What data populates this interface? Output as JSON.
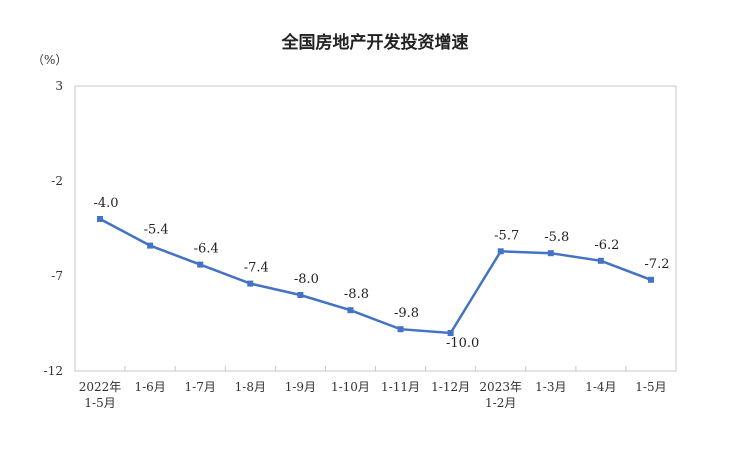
{
  "chart_data": {
    "type": "line",
    "title": "全国房地产开发投资增速",
    "ylabel": "（%）",
    "xlabel": "",
    "ylim": [
      -12,
      3
    ],
    "yticks": [
      3,
      -2,
      -7,
      -12
    ],
    "grid": false,
    "categories": [
      [
        "2022年",
        "1-5月"
      ],
      [
        "1-6月"
      ],
      [
        "1-7月"
      ],
      [
        "1-8月"
      ],
      [
        "1-9月"
      ],
      [
        "1-10月"
      ],
      [
        "1-11月"
      ],
      [
        "1-12月"
      ],
      [
        "2023年",
        "1-2月"
      ],
      [
        "1-3月"
      ],
      [
        "1-4月"
      ],
      [
        "1-5月"
      ]
    ],
    "series": [
      {
        "name": "全国房地产开发投资增速",
        "values": [
          -4.0,
          -5.4,
          -6.4,
          -7.4,
          -8.0,
          -8.8,
          -9.8,
          -10.0,
          -5.7,
          -5.8,
          -6.2,
          -7.2
        ],
        "color": "#4472C4"
      }
    ]
  }
}
